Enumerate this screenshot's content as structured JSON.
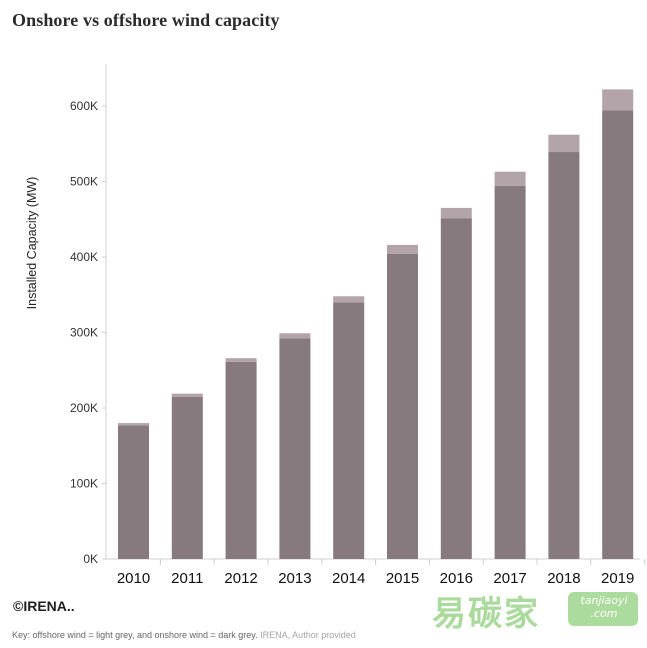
{
  "chart_data": {
    "type": "bar",
    "stacked": true,
    "title": "Onshore vs offshore wind capacity",
    "ylabel": "Installed Capacity (MW)",
    "xlabel": "",
    "categories": [
      "2010",
      "2011",
      "2012",
      "2013",
      "2014",
      "2015",
      "2016",
      "2017",
      "2018",
      "2019"
    ],
    "series": [
      {
        "name": "",
        "color": "#877a7e",
        "values": [
          177000,
          215000,
          261000,
          292000,
          340000,
          404000,
          451000,
          494000,
          539000,
          594000
        ]
      },
      {
        "name": "",
        "color": "#b3a4a9",
        "values": [
          3000,
          4000,
          5000,
          7000,
          8000,
          12000,
          14000,
          19000,
          23000,
          28000
        ]
      }
    ],
    "yticks": [
      "0K",
      "100K",
      "200K",
      "300K",
      "400K",
      "500K",
      "600K"
    ],
    "ylim": [
      0,
      650000
    ],
    "grid": false,
    "legend": "none"
  },
  "credit": "©IRENA..",
  "caption": {
    "key": "Key: offshore wind = light grey, and onshore wind = dark grey.",
    "source": "IRENA, Author provided"
  },
  "watermark": {
    "cn": "易碳家",
    "en_line1": "tanjiaoyi",
    "en_line2": ".com"
  }
}
